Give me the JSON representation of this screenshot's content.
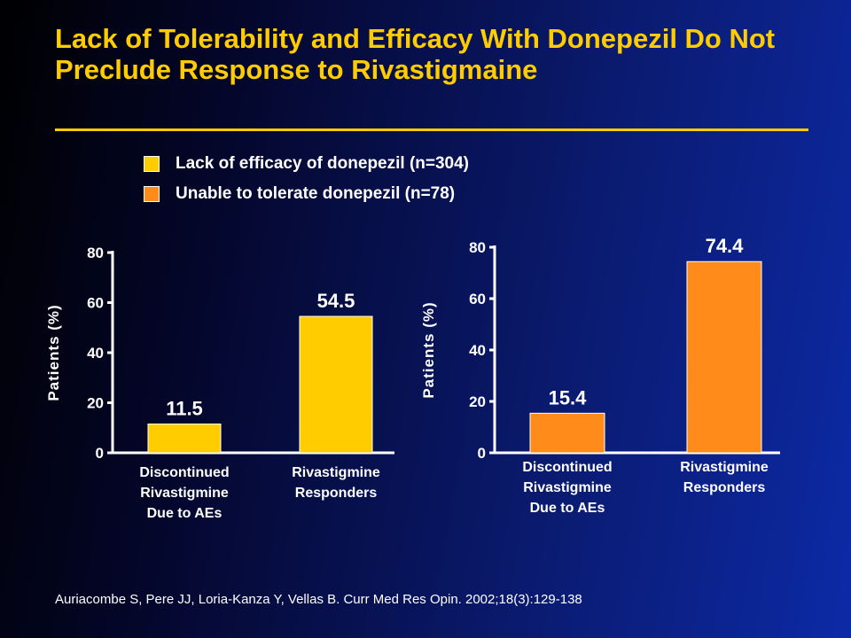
{
  "title": "Lack of Tolerability and Efficacy With Donepezil Do Not Preclude Response to Rivastigmaine",
  "legend": [
    {
      "label": "Lack of efficacy of donepezil (n=304)",
      "color": "#ffcc00"
    },
    {
      "label": "Unable to tolerate donepezil (n=78)",
      "color": "#ff8c1a"
    }
  ],
  "chart_data": [
    {
      "type": "bar",
      "series_name": "Lack of efficacy of donepezil (n=304)",
      "categories": [
        [
          "Discontinued",
          "Rivastigmine",
          "Due to AEs"
        ],
        [
          "Rivastigmine",
          "Responders"
        ]
      ],
      "values": [
        11.5,
        54.5
      ],
      "value_labels": [
        "11.5",
        "54.5"
      ],
      "ylabel": "Patients (%)",
      "ylim": [
        0,
        80
      ],
      "yticks": [
        "0",
        "20",
        "40",
        "60",
        "80"
      ],
      "color": "#ffcc00"
    },
    {
      "type": "bar",
      "series_name": "Unable to tolerate donepezil (n=78)",
      "categories": [
        [
          "Discontinued",
          "Rivastigmine",
          "Due to AEs"
        ],
        [
          "Rivastigmine",
          "Responders"
        ]
      ],
      "values": [
        15.4,
        74.4
      ],
      "value_labels": [
        "15.4",
        "74.4"
      ],
      "ylabel": "Patients (%)",
      "ylim": [
        0,
        80
      ],
      "yticks": [
        "0",
        "20",
        "40",
        "60",
        "80"
      ],
      "color": "#ff8c1a"
    }
  ],
  "footer": "Auriacombe S, Pere JJ, Loria-Kanza Y, Vellas B. Curr Med Res Opin. 2002;18(3):129-138"
}
